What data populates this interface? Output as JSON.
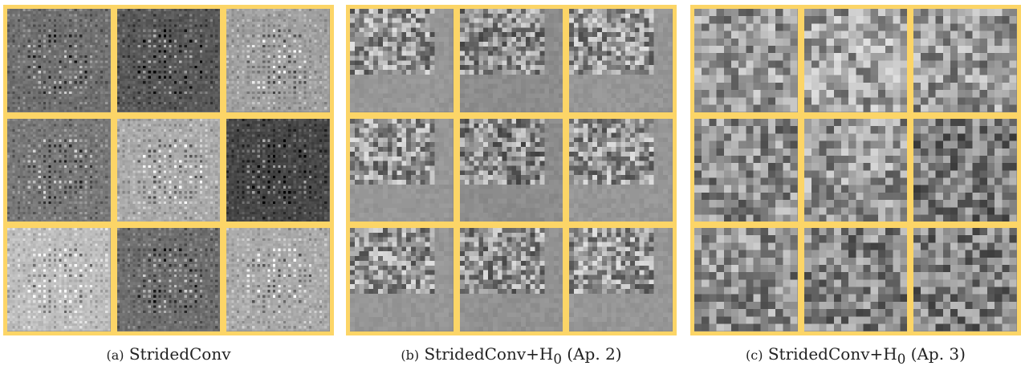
{
  "figure": {
    "border_color": "#fcd567",
    "panels": [
      {
        "id": "a",
        "caption_tag": "(a)",
        "caption_text": "StridedConv",
        "caption_sub": "",
        "caption_suffix": "",
        "style": "strided",
        "tile_base_gray": [
          112,
          88,
          160,
          120,
          170,
          70,
          190,
          110,
          170
        ]
      },
      {
        "id": "b",
        "caption_tag": "(b)",
        "caption_text": "StridedConv+H",
        "caption_sub": "0",
        "caption_suffix": " (Ap. 2)",
        "style": "smooth",
        "tile_base_gray": [
          150,
          140,
          150,
          150,
          140,
          150,
          150,
          145,
          150
        ]
      },
      {
        "id": "c",
        "caption_tag": "(c)",
        "caption_text": "StridedConv+H",
        "caption_sub": "0",
        "caption_suffix": " (Ap. 3)",
        "style": "noisy",
        "tile_base_gray": [
          150,
          160,
          150,
          140,
          150,
          120,
          140,
          130,
          125
        ]
      }
    ]
  }
}
